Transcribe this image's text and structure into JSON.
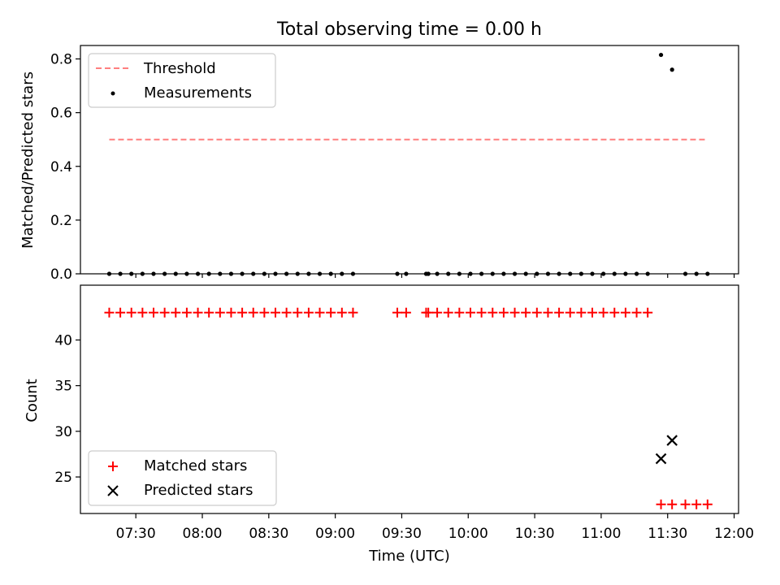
{
  "chart_data": [
    {
      "type": "scatter",
      "title": "Total observing time = 0.00 h",
      "xlabel": "",
      "ylabel": "Matched/Predicted stars",
      "ylim": [
        0.0,
        0.85
      ],
      "yticks": [
        "0.0",
        "0.2",
        "0.4",
        "0.6",
        "0.8"
      ],
      "legend_position": "upper-left",
      "threshold": {
        "name": "Threshold",
        "color": "#ff7f7f",
        "style": "dashed",
        "value": 0.5,
        "x_range": [
          "07:18",
          "11:48"
        ]
      },
      "series": [
        {
          "name": "Measurements",
          "marker": "dot",
          "color": "#000000",
          "points": [
            [
              "07:18",
              0
            ],
            [
              "07:23",
              0
            ],
            [
              "07:28",
              0
            ],
            [
              "07:33",
              0
            ],
            [
              "07:38",
              0
            ],
            [
              "07:43",
              0
            ],
            [
              "07:48",
              0
            ],
            [
              "07:53",
              0
            ],
            [
              "07:58",
              0
            ],
            [
              "08:03",
              0
            ],
            [
              "08:08",
              0
            ],
            [
              "08:13",
              0
            ],
            [
              "08:18",
              0
            ],
            [
              "08:23",
              0
            ],
            [
              "08:28",
              0
            ],
            [
              "08:33",
              0
            ],
            [
              "08:38",
              0
            ],
            [
              "08:43",
              0
            ],
            [
              "08:48",
              0
            ],
            [
              "08:53",
              0
            ],
            [
              "08:58",
              0
            ],
            [
              "09:03",
              0
            ],
            [
              "09:08",
              0
            ],
            [
              "09:28",
              0
            ],
            [
              "09:32",
              0
            ],
            [
              "09:41",
              0
            ],
            [
              "09:42",
              0
            ],
            [
              "09:46",
              0
            ],
            [
              "09:51",
              0
            ],
            [
              "09:56",
              0
            ],
            [
              "10:01",
              0
            ],
            [
              "10:06",
              0
            ],
            [
              "10:11",
              0
            ],
            [
              "10:16",
              0
            ],
            [
              "10:21",
              0
            ],
            [
              "10:26",
              0
            ],
            [
              "10:31",
              0
            ],
            [
              "10:36",
              0
            ],
            [
              "10:41",
              0
            ],
            [
              "10:46",
              0
            ],
            [
              "10:51",
              0
            ],
            [
              "10:56",
              0
            ],
            [
              "11:01",
              0
            ],
            [
              "11:06",
              0
            ],
            [
              "11:11",
              0
            ],
            [
              "11:16",
              0
            ],
            [
              "11:21",
              0
            ],
            [
              "11:27",
              0.815
            ],
            [
              "11:32",
              0.76
            ],
            [
              "11:38",
              0
            ],
            [
              "11:43",
              0
            ],
            [
              "11:48",
              0
            ]
          ]
        }
      ]
    },
    {
      "type": "scatter",
      "title": "",
      "xlabel": "Time (UTC)",
      "ylabel": "Count",
      "ylim": [
        21,
        46
      ],
      "yticks": [
        "25",
        "30",
        "35",
        "40"
      ],
      "xlim": [
        "07:05",
        "12:02"
      ],
      "xticks": [
        "07:30",
        "08:00",
        "08:30",
        "09:00",
        "09:30",
        "10:00",
        "10:30",
        "11:00",
        "11:30",
        "12:00"
      ],
      "legend_position": "lower-left",
      "series": [
        {
          "name": "Matched stars",
          "marker": "plus",
          "color": "#ff0000",
          "points": [
            [
              "07:18",
              43
            ],
            [
              "07:23",
              43
            ],
            [
              "07:28",
              43
            ],
            [
              "07:33",
              43
            ],
            [
              "07:38",
              43
            ],
            [
              "07:43",
              43
            ],
            [
              "07:48",
              43
            ],
            [
              "07:53",
              43
            ],
            [
              "07:58",
              43
            ],
            [
              "08:03",
              43
            ],
            [
              "08:08",
              43
            ],
            [
              "08:13",
              43
            ],
            [
              "08:18",
              43
            ],
            [
              "08:23",
              43
            ],
            [
              "08:28",
              43
            ],
            [
              "08:33",
              43
            ],
            [
              "08:38",
              43
            ],
            [
              "08:43",
              43
            ],
            [
              "08:48",
              43
            ],
            [
              "08:53",
              43
            ],
            [
              "08:58",
              43
            ],
            [
              "09:03",
              43
            ],
            [
              "09:08",
              43
            ],
            [
              "09:28",
              43
            ],
            [
              "09:32",
              43
            ],
            [
              "09:41",
              43
            ],
            [
              "09:42",
              43
            ],
            [
              "09:46",
              43
            ],
            [
              "09:51",
              43
            ],
            [
              "09:56",
              43
            ],
            [
              "10:01",
              43
            ],
            [
              "10:06",
              43
            ],
            [
              "10:11",
              43
            ],
            [
              "10:16",
              43
            ],
            [
              "10:21",
              43
            ],
            [
              "10:26",
              43
            ],
            [
              "10:31",
              43
            ],
            [
              "10:36",
              43
            ],
            [
              "10:41",
              43
            ],
            [
              "10:46",
              43
            ],
            [
              "10:51",
              43
            ],
            [
              "10:56",
              43
            ],
            [
              "11:01",
              43
            ],
            [
              "11:06",
              43
            ],
            [
              "11:11",
              43
            ],
            [
              "11:16",
              43
            ],
            [
              "11:21",
              43
            ],
            [
              "11:27",
              22
            ],
            [
              "11:32",
              22
            ],
            [
              "11:38",
              22
            ],
            [
              "11:43",
              22
            ],
            [
              "11:48",
              22
            ]
          ]
        },
        {
          "name": "Predicted stars",
          "marker": "x",
          "color": "#000000",
          "points": [
            [
              "11:27",
              27
            ],
            [
              "11:32",
              29
            ]
          ]
        }
      ]
    }
  ]
}
